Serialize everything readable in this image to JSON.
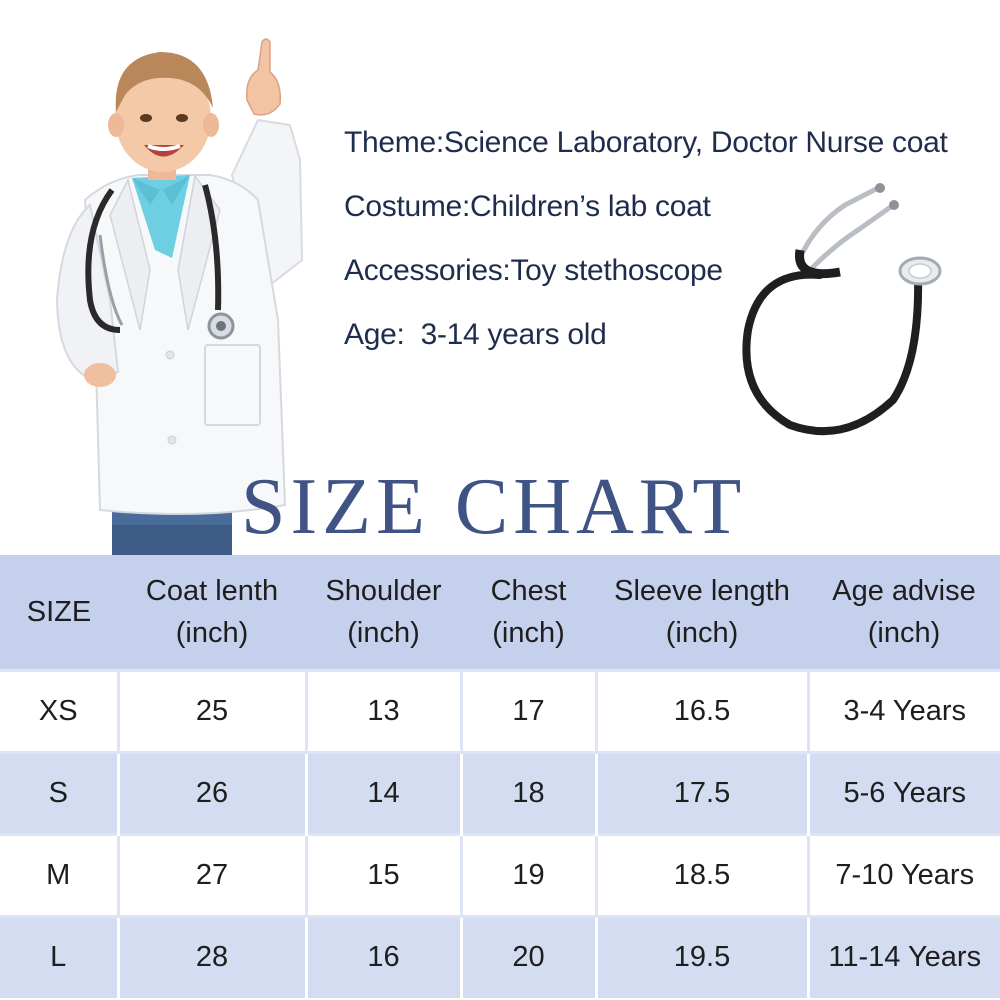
{
  "info": {
    "theme": {
      "label": "Theme:",
      "value": "Science Laboratory, Doctor Nurse coat"
    },
    "costume": {
      "label": "Costume:",
      "value": "Children’s lab coat"
    },
    "accessories": {
      "label": "Accessories:",
      "value": "Toy stethoscope"
    },
    "age": {
      "label": "Age:",
      "value": "  3-14 years old"
    }
  },
  "size_chart": {
    "title": "SIZE CHART",
    "headers": [
      [
        "SIZE"
      ],
      [
        "Coat lenth",
        "(inch)"
      ],
      [
        "Shoulder",
        "(inch)"
      ],
      [
        "Chest",
        "(inch)"
      ],
      [
        "Sleeve length",
        "(inch)"
      ],
      [
        "Age advise",
        "(inch)"
      ]
    ],
    "rows": [
      [
        "XS",
        "25",
        "13",
        "17",
        "16.5",
        "3-4 Years"
      ],
      [
        "S",
        "26",
        "14",
        "18",
        "17.5",
        "5-6 Years"
      ],
      [
        "M",
        "27",
        "15",
        "19",
        "18.5",
        "7-10 Years"
      ],
      [
        "L",
        "28",
        "16",
        "20",
        "19.5",
        "11-14 Years"
      ]
    ]
  },
  "colors": {
    "title": "#3f5384",
    "header_bg": "#c5d0ec",
    "row_alt_bg": "#d3dcf0",
    "info_text": "#1f2d4d"
  },
  "images": {
    "child": "child-in-lab-coat-with-stethoscope",
    "stethoscope": "toy-stethoscope"
  }
}
